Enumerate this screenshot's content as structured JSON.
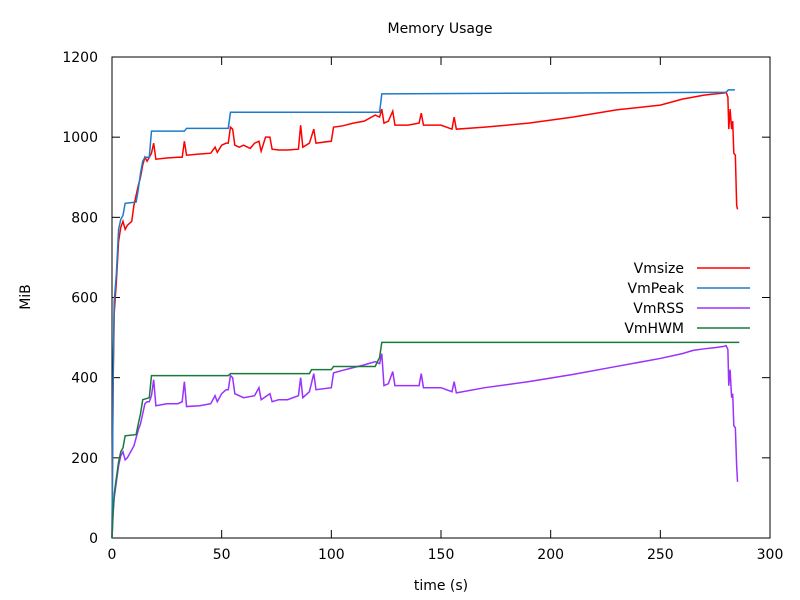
{
  "chart_data": {
    "type": "line",
    "title": "Memory Usage",
    "xlabel": "time (s)",
    "ylabel": "MiB",
    "xlim": [
      0,
      300
    ],
    "ylim": [
      0,
      1200
    ],
    "x_ticks": [
      0,
      50,
      100,
      150,
      200,
      250,
      300
    ],
    "y_ticks": [
      0,
      200,
      400,
      600,
      800,
      1000,
      1200
    ],
    "grid": false,
    "legend_position": "right",
    "series": [
      {
        "name": "Vmsize",
        "color": "#ff0000",
        "points": [
          [
            0,
            0
          ],
          [
            0.5,
            380
          ],
          [
            1,
            560
          ],
          [
            2,
            640
          ],
          [
            3,
            740
          ],
          [
            4,
            775
          ],
          [
            5,
            790
          ],
          [
            6,
            770
          ],
          [
            7,
            780
          ],
          [
            9,
            790
          ],
          [
            10,
            830
          ],
          [
            12,
            880
          ],
          [
            13,
            900
          ],
          [
            14,
            930
          ],
          [
            15,
            950
          ],
          [
            16,
            940
          ],
          [
            17,
            950
          ],
          [
            18,
            960
          ],
          [
            19,
            985
          ],
          [
            20,
            945
          ],
          [
            25,
            948
          ],
          [
            30,
            950
          ],
          [
            32,
            950
          ],
          [
            33,
            990
          ],
          [
            34,
            955
          ],
          [
            40,
            958
          ],
          [
            45,
            960
          ],
          [
            47,
            975
          ],
          [
            48,
            962
          ],
          [
            50,
            980
          ],
          [
            52,
            985
          ],
          [
            53,
            985
          ],
          [
            54,
            1025
          ],
          [
            55,
            1020
          ],
          [
            56,
            980
          ],
          [
            58,
            975
          ],
          [
            60,
            980
          ],
          [
            63,
            972
          ],
          [
            65,
            985
          ],
          [
            67,
            990
          ],
          [
            68,
            965
          ],
          [
            70,
            1000
          ],
          [
            72,
            1000
          ],
          [
            73,
            970
          ],
          [
            76,
            968
          ],
          [
            80,
            968
          ],
          [
            85,
            970
          ],
          [
            86,
            1030
          ],
          [
            87,
            975
          ],
          [
            90,
            985
          ],
          [
            92,
            1020
          ],
          [
            93,
            985
          ],
          [
            100,
            990
          ],
          [
            101,
            1025
          ],
          [
            105,
            1028
          ],
          [
            110,
            1035
          ],
          [
            115,
            1040
          ],
          [
            120,
            1055
          ],
          [
            122,
            1050
          ],
          [
            123,
            1070
          ],
          [
            124,
            1035
          ],
          [
            126,
            1040
          ],
          [
            128,
            1065
          ],
          [
            129,
            1030
          ],
          [
            135,
            1030
          ],
          [
            140,
            1035
          ],
          [
            141,
            1060
          ],
          [
            142,
            1030
          ],
          [
            150,
            1030
          ],
          [
            155,
            1020
          ],
          [
            156,
            1050
          ],
          [
            157,
            1020
          ],
          [
            170,
            1025
          ],
          [
            190,
            1035
          ],
          [
            210,
            1050
          ],
          [
            230,
            1068
          ],
          [
            250,
            1080
          ],
          [
            260,
            1095
          ],
          [
            265,
            1100
          ],
          [
            270,
            1105
          ],
          [
            275,
            1108
          ],
          [
            279,
            1110
          ],
          [
            280,
            1112
          ],
          [
            280.8,
            1100
          ],
          [
            281.2,
            1020
          ],
          [
            281.8,
            1070
          ],
          [
            282.5,
            1020
          ],
          [
            283,
            1040
          ],
          [
            283.5,
            960
          ],
          [
            284.2,
            955
          ],
          [
            284.8,
            830
          ],
          [
            285.2,
            820
          ]
        ]
      },
      {
        "name": "VmPeak",
        "color": "#1e7bc8",
        "points": [
          [
            0,
            0
          ],
          [
            0.5,
            400
          ],
          [
            1,
            590
          ],
          [
            2,
            660
          ],
          [
            3,
            770
          ],
          [
            4,
            795
          ],
          [
            5,
            805
          ],
          [
            6,
            835
          ],
          [
            11,
            838
          ],
          [
            12,
            870
          ],
          [
            13,
            910
          ],
          [
            14,
            940
          ],
          [
            15,
            950
          ],
          [
            17,
            950
          ],
          [
            18,
            1015
          ],
          [
            33,
            1015
          ],
          [
            34,
            1022
          ],
          [
            53,
            1022
          ],
          [
            54,
            1062
          ],
          [
            122,
            1062
          ],
          [
            123,
            1108
          ],
          [
            280,
            1112
          ],
          [
            281,
            1118
          ],
          [
            284,
            1118
          ]
        ]
      },
      {
        "name": "VmRSS",
        "color": "#9b30ff",
        "points": [
          [
            0,
            0
          ],
          [
            0.5,
            60
          ],
          [
            1,
            100
          ],
          [
            2,
            140
          ],
          [
            3,
            180
          ],
          [
            4,
            205
          ],
          [
            5,
            215
          ],
          [
            6,
            195
          ],
          [
            7,
            200
          ],
          [
            8,
            210
          ],
          [
            10,
            230
          ],
          [
            12,
            270
          ],
          [
            13,
            285
          ],
          [
            14,
            310
          ],
          [
            15,
            335
          ],
          [
            16,
            340
          ],
          [
            17,
            340
          ],
          [
            18,
            355
          ],
          [
            19,
            395
          ],
          [
            20,
            330
          ],
          [
            25,
            335
          ],
          [
            30,
            335
          ],
          [
            32,
            340
          ],
          [
            33,
            390
          ],
          [
            34,
            328
          ],
          [
            40,
            330
          ],
          [
            45,
            335
          ],
          [
            47,
            355
          ],
          [
            48,
            340
          ],
          [
            50,
            360
          ],
          [
            52,
            370
          ],
          [
            53,
            370
          ],
          [
            54,
            405
          ],
          [
            55,
            400
          ],
          [
            56,
            360
          ],
          [
            60,
            350
          ],
          [
            65,
            355
          ],
          [
            67,
            375
          ],
          [
            68,
            345
          ],
          [
            72,
            360
          ],
          [
            73,
            340
          ],
          [
            76,
            345
          ],
          [
            80,
            345
          ],
          [
            85,
            355
          ],
          [
            86,
            400
          ],
          [
            87,
            350
          ],
          [
            90,
            365
          ],
          [
            92,
            410
          ],
          [
            93,
            370
          ],
          [
            100,
            375
          ],
          [
            101,
            412
          ],
          [
            105,
            418
          ],
          [
            110,
            425
          ],
          [
            115,
            432
          ],
          [
            120,
            440
          ],
          [
            122,
            435
          ],
          [
            123,
            460
          ],
          [
            124,
            380
          ],
          [
            126,
            385
          ],
          [
            128,
            415
          ],
          [
            129,
            380
          ],
          [
            135,
            380
          ],
          [
            140,
            380
          ],
          [
            141,
            410
          ],
          [
            142,
            375
          ],
          [
            150,
            375
          ],
          [
            155,
            365
          ],
          [
            156,
            390
          ],
          [
            157,
            362
          ],
          [
            170,
            375
          ],
          [
            190,
            390
          ],
          [
            210,
            408
          ],
          [
            230,
            428
          ],
          [
            250,
            448
          ],
          [
            260,
            460
          ],
          [
            265,
            468
          ],
          [
            270,
            472
          ],
          [
            275,
            475
          ],
          [
            279,
            478
          ],
          [
            280,
            480
          ],
          [
            280.8,
            470
          ],
          [
            281.2,
            380
          ],
          [
            281.8,
            420
          ],
          [
            282.5,
            350
          ],
          [
            283,
            360
          ],
          [
            283.5,
            280
          ],
          [
            284.2,
            275
          ],
          [
            284.8,
            180
          ],
          [
            285.2,
            140
          ]
        ]
      },
      {
        "name": "VmHWM",
        "color": "#1a7a3c",
        "points": [
          [
            0,
            0
          ],
          [
            0.5,
            65
          ],
          [
            1,
            110
          ],
          [
            2,
            150
          ],
          [
            3,
            190
          ],
          [
            4,
            215
          ],
          [
            5,
            225
          ],
          [
            6,
            255
          ],
          [
            11,
            258
          ],
          [
            12,
            285
          ],
          [
            13,
            310
          ],
          [
            14,
            345
          ],
          [
            17,
            350
          ],
          [
            18,
            405
          ],
          [
            53,
            405
          ],
          [
            54,
            410
          ],
          [
            90,
            410
          ],
          [
            91,
            420
          ],
          [
            100,
            420
          ],
          [
            101,
            428
          ],
          [
            120,
            428
          ],
          [
            121,
            440
          ],
          [
            122,
            450
          ],
          [
            123,
            488
          ],
          [
            286,
            488
          ]
        ]
      }
    ]
  }
}
